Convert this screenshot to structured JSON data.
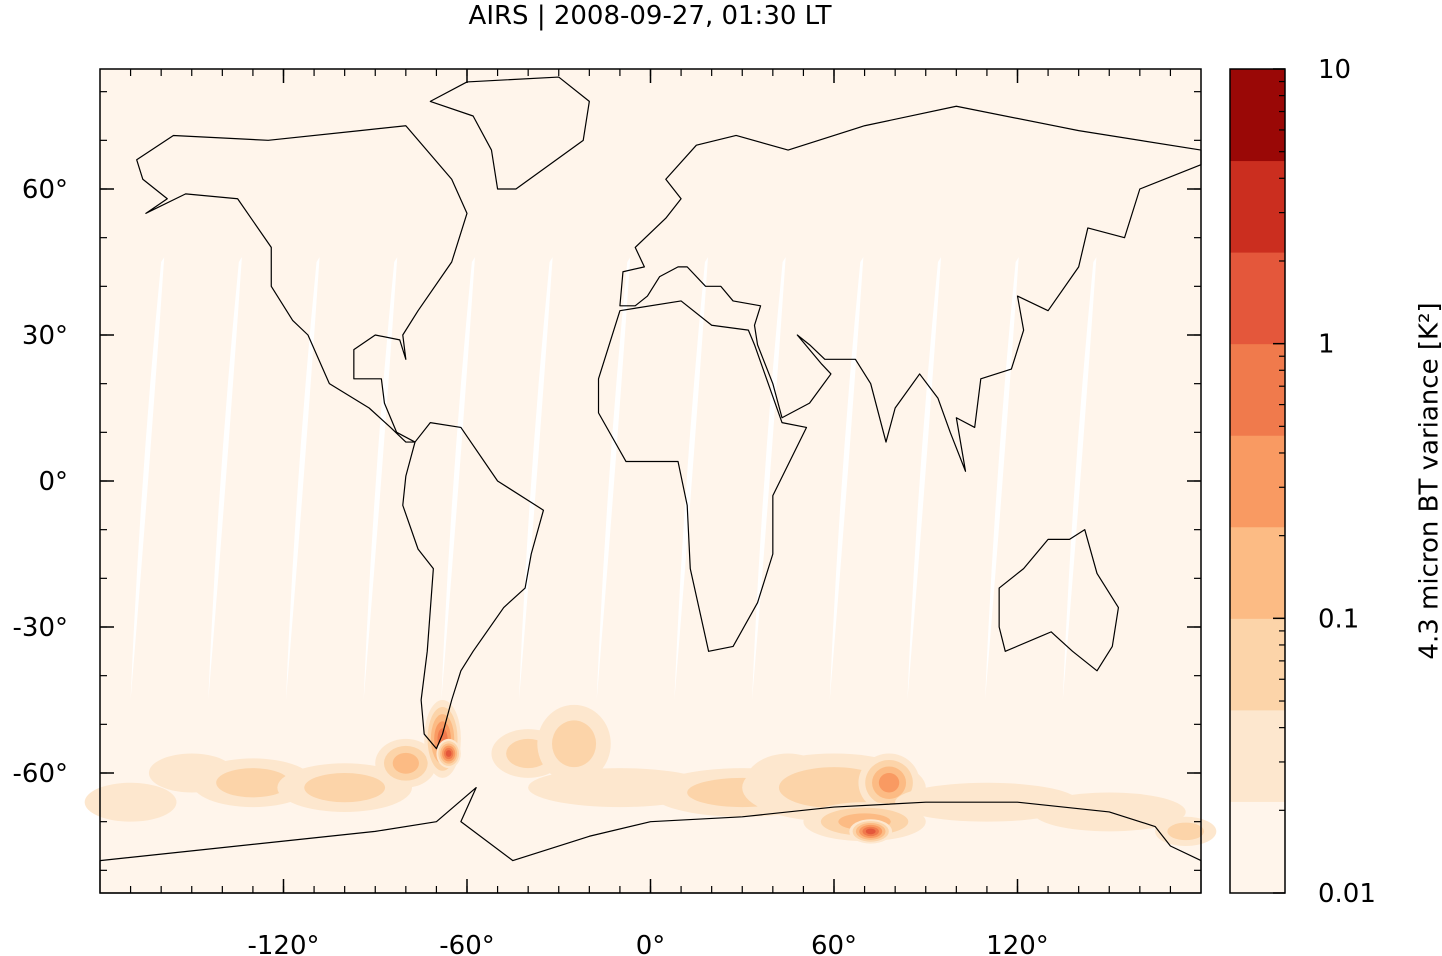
{
  "title": "AIRS | 2008-09-27, 01:30 LT",
  "map": {
    "xticks": [
      {
        "value": -120,
        "label": "-120°"
      },
      {
        "value": -60,
        "label": "-60°"
      },
      {
        "value": 0,
        "label": "0°"
      },
      {
        "value": 60,
        "label": "60°"
      },
      {
        "value": 120,
        "label": "120°"
      }
    ],
    "yticks": [
      {
        "value": 60,
        "label": "60°"
      },
      {
        "value": 30,
        "label": "30°"
      },
      {
        "value": 0,
        "label": "0°"
      },
      {
        "value": -30,
        "label": "-30°"
      },
      {
        "value": -60,
        "label": "-60°"
      }
    ]
  },
  "colorbar": {
    "label": "4.3 micron BT variance [K²]",
    "log": true,
    "ticks": [
      10,
      1,
      0.1,
      0.01
    ],
    "colors": [
      "#fff5eb",
      "#fde7ce",
      "#fcd4a9",
      "#fcbb84",
      "#f99a62",
      "#f07a4c",
      "#e4573b",
      "#cb2e1f",
      "#9a0806"
    ]
  }
}
